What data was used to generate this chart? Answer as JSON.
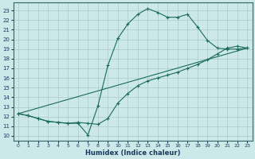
{
  "xlabel": "Humidex (Indice chaleur)",
  "bg_color": "#cce8e8",
  "grid_color": "#aacccc",
  "line_color": "#1a6b5a",
  "xlim": [
    -0.5,
    23.5
  ],
  "ylim": [
    9.5,
    23.8
  ],
  "xticks": [
    0,
    1,
    2,
    3,
    4,
    5,
    6,
    7,
    8,
    9,
    10,
    11,
    12,
    13,
    14,
    15,
    16,
    17,
    18,
    19,
    20,
    21,
    22,
    23
  ],
  "yticks": [
    10,
    11,
    12,
    13,
    14,
    15,
    16,
    17,
    18,
    19,
    20,
    21,
    22,
    23
  ],
  "line1_x": [
    0,
    1,
    2,
    3,
    4,
    5,
    6,
    7,
    8,
    9,
    10,
    11,
    12,
    13,
    14,
    15,
    16,
    17,
    18,
    19,
    20,
    21,
    22,
    23
  ],
  "line1_y": [
    12.3,
    12.1,
    11.8,
    11.5,
    11.4,
    11.3,
    11.3,
    10.1,
    13.1,
    17.3,
    20.1,
    21.6,
    22.6,
    23.2,
    22.8,
    22.3,
    22.3,
    22.6,
    21.3,
    19.9,
    19.1,
    19.0,
    19.0,
    19.1
  ],
  "line2_x": [
    0,
    1,
    2,
    3,
    4,
    5,
    6,
    7,
    8,
    9,
    10,
    11,
    12,
    13,
    14,
    15,
    16,
    17,
    18,
    19,
    20,
    21,
    22,
    23
  ],
  "line2_y": [
    12.3,
    12.1,
    11.8,
    11.5,
    11.4,
    11.3,
    11.4,
    11.3,
    11.2,
    11.8,
    13.4,
    14.4,
    15.2,
    15.7,
    16.0,
    16.3,
    16.6,
    17.0,
    17.4,
    17.9,
    18.5,
    19.1,
    19.3,
    19.1
  ],
  "line3_x": [
    0,
    23
  ],
  "line3_y": [
    12.3,
    19.1
  ]
}
